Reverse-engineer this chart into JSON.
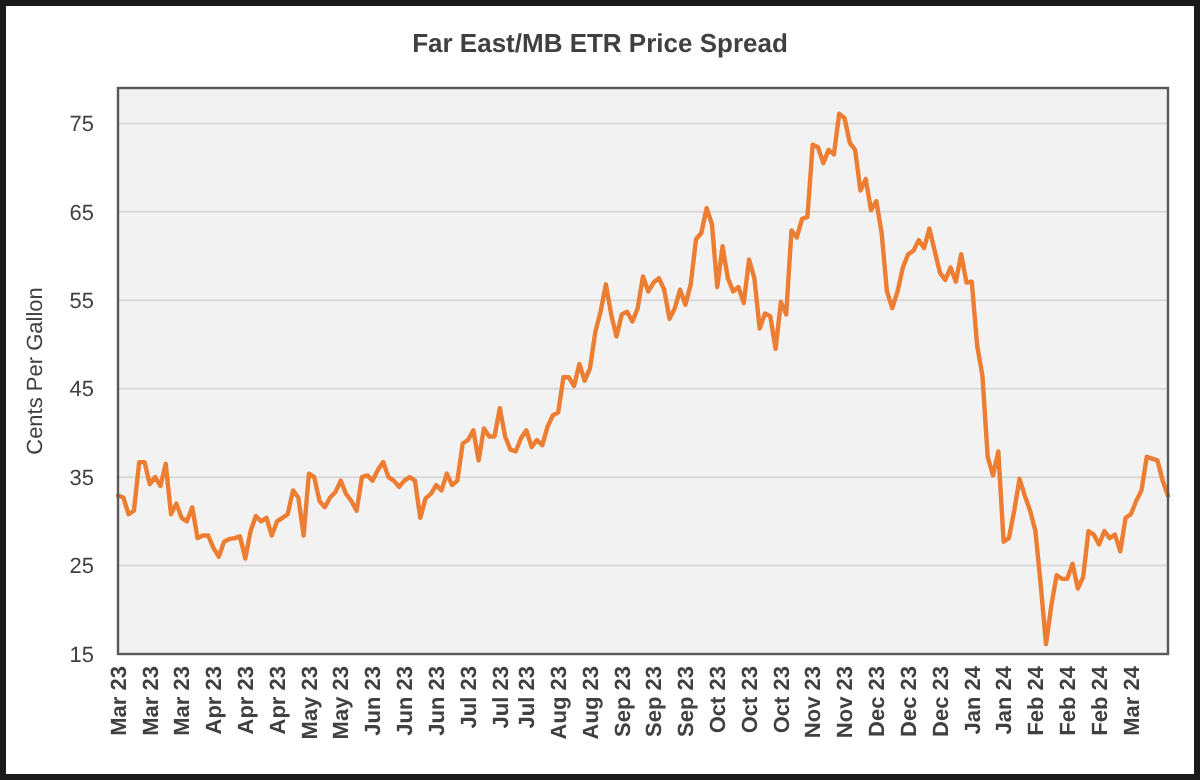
{
  "chart_data": {
    "type": "line",
    "title": "Far East/MB ETR Price Spread",
    "ylabel": "Cents Per Gallon",
    "grid": "y",
    "marker": "none",
    "line_style": "solid",
    "categories": [
      "Mar 23",
      null,
      null,
      null,
      null,
      null,
      "Mar 23",
      null,
      null,
      null,
      null,
      null,
      "Mar 23",
      null,
      null,
      null,
      null,
      null,
      "Apr 23",
      null,
      null,
      null,
      null,
      null,
      "Apr 23",
      null,
      null,
      null,
      null,
      null,
      "Apr 23",
      null,
      null,
      null,
      null,
      null,
      "May 23",
      null,
      null,
      null,
      null,
      null,
      "May 23",
      null,
      null,
      null,
      null,
      null,
      "Jun 23",
      null,
      null,
      null,
      null,
      null,
      "Jun 23",
      null,
      null,
      null,
      null,
      null,
      "Jun 23",
      null,
      null,
      null,
      null,
      null,
      "Jul 23",
      null,
      null,
      null,
      null,
      null,
      "Jul 23",
      null,
      null,
      null,
      null,
      "Jul 23",
      null,
      null,
      null,
      null,
      null,
      "Aug 23",
      null,
      null,
      null,
      null,
      null,
      "Aug 23",
      null,
      null,
      null,
      null,
      null,
      "Sep 23",
      null,
      null,
      null,
      null,
      null,
      "Sep 23",
      null,
      null,
      null,
      null,
      null,
      "Sep 23",
      null,
      null,
      null,
      null,
      null,
      "Oct 23",
      null,
      null,
      null,
      null,
      null,
      "Oct 23",
      null,
      null,
      null,
      null,
      null,
      "Oct 23",
      null,
      null,
      null,
      null,
      null,
      "Nov 23",
      null,
      null,
      null,
      null,
      null,
      "Nov 23",
      null,
      null,
      null,
      null,
      null,
      "Dec 23",
      null,
      null,
      null,
      null,
      null,
      "Dec 23",
      null,
      null,
      null,
      null,
      null,
      "Dec 23",
      null,
      null,
      null,
      null,
      null,
      "Jan 24",
      null,
      null,
      null,
      null,
      null,
      "Jan 24",
      null,
      null,
      null,
      null,
      null,
      "Feb 24",
      null,
      null,
      null,
      null,
      null,
      "Feb 24",
      null,
      null,
      null,
      null,
      null,
      "Feb 24",
      null,
      null,
      null,
      null,
      null,
      "Mar 24",
      null,
      null,
      null,
      null,
      null,
      null,
      null
    ],
    "ylim": [
      15,
      79
    ],
    "yticks": [
      15,
      25,
      35,
      45,
      55,
      65,
      75
    ],
    "series": [
      {
        "color": "#ed7d31",
        "values": [
          32.9,
          32.7,
          30.8,
          31.2,
          36.7,
          36.7,
          34.2,
          35,
          34,
          36.5,
          30.8,
          32,
          30.4,
          30,
          31.6,
          28.1,
          28.4,
          28.4,
          27,
          26,
          27.7,
          28,
          28.1,
          28.3,
          25.8,
          28.9,
          30.6,
          30,
          30.4,
          28.4,
          30,
          30.4,
          30.8,
          33.5,
          32.7,
          28.4,
          35.4,
          35,
          32.3,
          31.6,
          32.7,
          33.3,
          34.6,
          33.1,
          32.3,
          31.2,
          35,
          35.2,
          34.6,
          35.8,
          36.7,
          35,
          34.6,
          33.9,
          34.6,
          35,
          34.6,
          30.4,
          32.6,
          33.1,
          34.1,
          33.5,
          35.4,
          34.1,
          34.6,
          38.8,
          39.2,
          40.3,
          36.9,
          40.5,
          39.6,
          39.6,
          42.8,
          39.6,
          38.1,
          37.9,
          39.4,
          40.3,
          38.4,
          39.2,
          38.6,
          40.7,
          42,
          42.3,
          46.3,
          46.3,
          45.3,
          47.8,
          45.9,
          47.3,
          51.4,
          53.7,
          56.8,
          53.4,
          50.9,
          53.4,
          53.7,
          52.6,
          54.1,
          57.7,
          56,
          57,
          57.5,
          56.2,
          52.9,
          54.1,
          56.2,
          54.5,
          56.8,
          61.9,
          62.6,
          65.4,
          63.6,
          56.5,
          61.1,
          57.5,
          56,
          56.5,
          54.7,
          59.6,
          57.5,
          51.8,
          53.5,
          53.2,
          49.5,
          54.8,
          53.4,
          62.9,
          62.1,
          64.2,
          64.4,
          72.6,
          72.3,
          70.5,
          72,
          71.5,
          76.1,
          75.6,
          72.8,
          72,
          67.4,
          68.7,
          65.2,
          66.2,
          62.6,
          56,
          54.1,
          56,
          58.7,
          60.2,
          60.6,
          61.8,
          60.9,
          63.1,
          60.6,
          58.1,
          57.3,
          58.7,
          57.1,
          60.2,
          57,
          57.1,
          49.9,
          46.5,
          37.3,
          35.2,
          37.9,
          27.7,
          28.1,
          31.2,
          34.8,
          32.9,
          31.2,
          28.9,
          22.8,
          16.1,
          20.5,
          23.9,
          23.5,
          23.5,
          25.2,
          22.4,
          23.7,
          28.9,
          28.5,
          27.4,
          28.9,
          28.1,
          28.5,
          26.6,
          30.4,
          30.8,
          32.3,
          33.5,
          37.3,
          37.1,
          36.9,
          34.6,
          32.9
        ]
      }
    ]
  }
}
